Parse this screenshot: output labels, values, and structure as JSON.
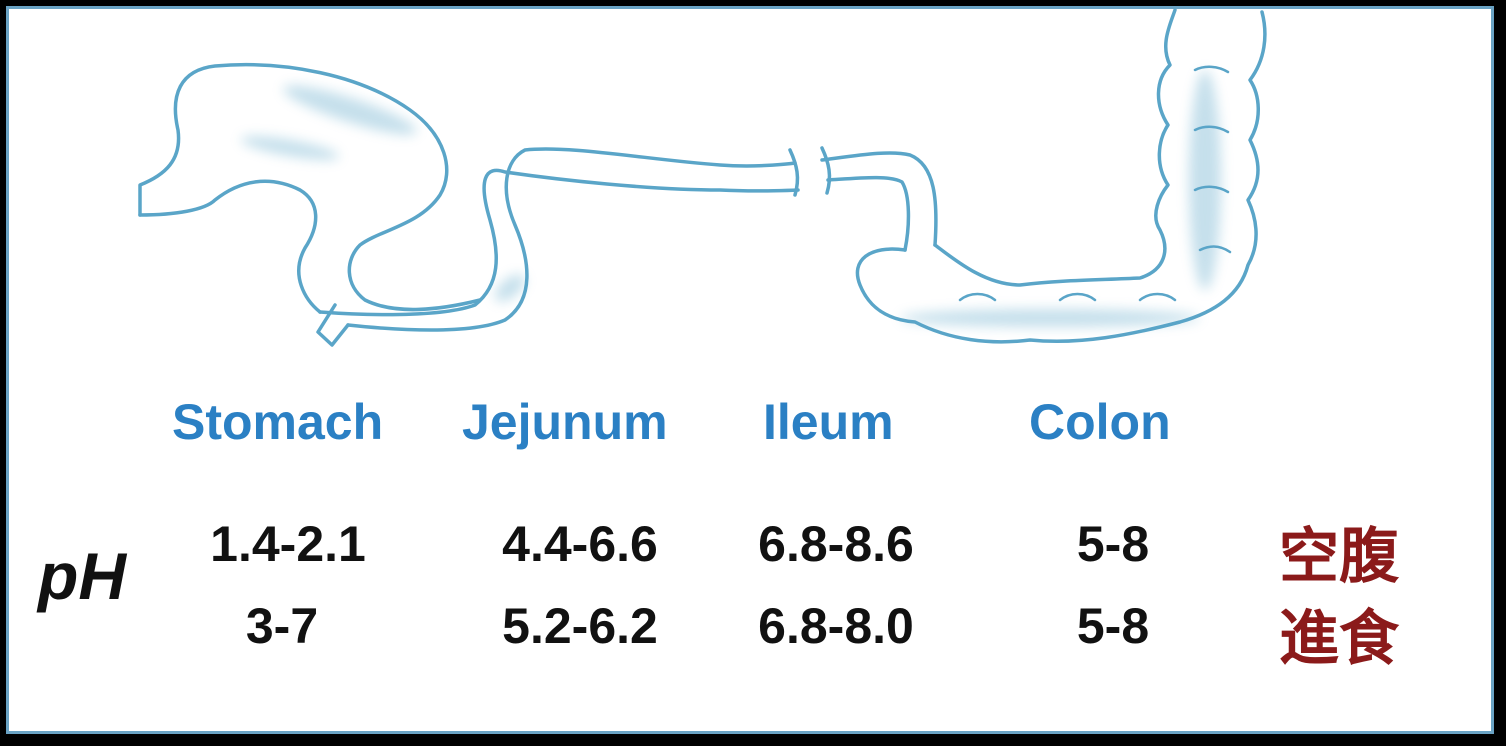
{
  "regions": {
    "stomach": "Stomach",
    "jejunum": "Jejunum",
    "ileum": "Ileum",
    "colon": "Colon"
  },
  "ph_label": "pH",
  "conditions": {
    "fasted": "空腹",
    "fed": "進食"
  },
  "ph_values": {
    "fasted": {
      "stomach": "1.4-2.1",
      "jejunum": "4.4-6.6",
      "ileum": "6.8-8.6",
      "colon": "5-8"
    },
    "fed": {
      "stomach": "3-7",
      "jejunum": "5.2-6.2",
      "ileum": "6.8-8.0",
      "colon": "5-8"
    }
  },
  "colors": {
    "outline": "#5aa5c8",
    "region_label": "#2b80c4",
    "condition_label": "#8b1a1a",
    "frame": "#6aa3c4"
  }
}
